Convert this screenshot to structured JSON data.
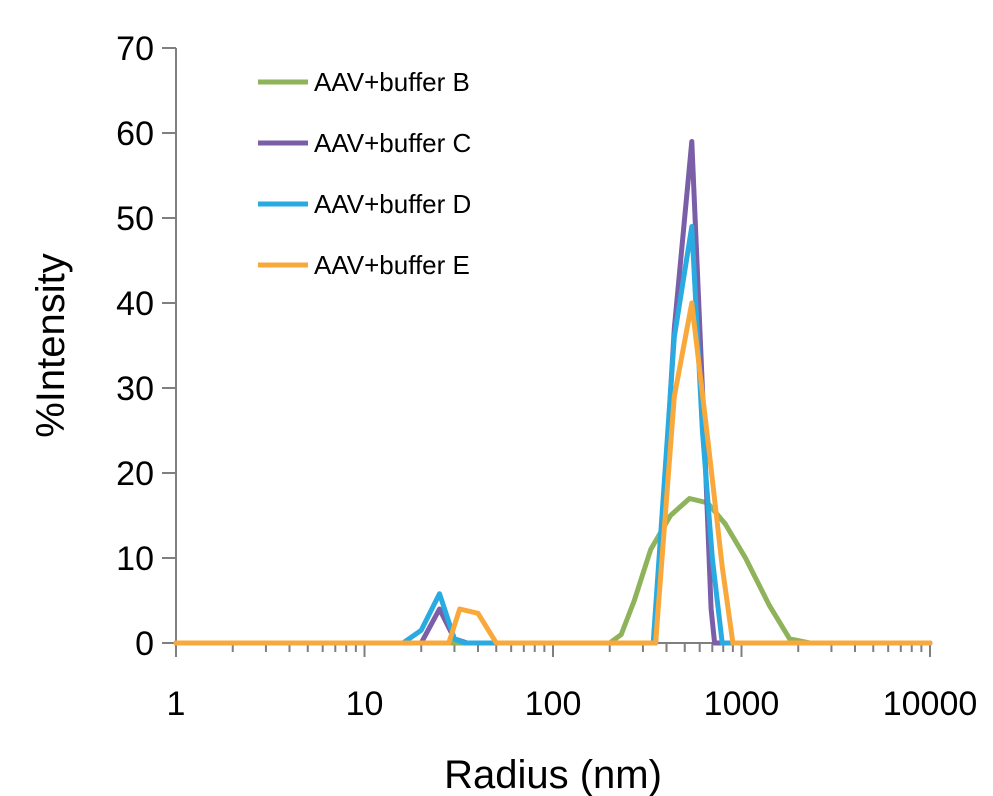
{
  "chart_data": {
    "type": "line",
    "title": "",
    "xlabel": "Radius (nm)",
    "ylabel": "%Intensity",
    "x_scale": "log",
    "xlim": [
      1,
      10000
    ],
    "ylim": [
      0,
      70
    ],
    "y_ticks": [
      0,
      10,
      20,
      30,
      40,
      50,
      60,
      70
    ],
    "x_ticks": [
      1,
      10,
      100,
      1000,
      10000
    ],
    "x_tick_labels": [
      "1",
      "10",
      "100",
      "1000",
      "10000"
    ],
    "y_tick_labels": [
      "0",
      "10",
      "20",
      "30",
      "40",
      "50",
      "60",
      "70"
    ],
    "grid": false,
    "legend_position": "top-left",
    "series": [
      {
        "name": "AAV+buffer B",
        "color": "#8fb35a",
        "points": [
          [
            1,
            0
          ],
          [
            200,
            0
          ],
          [
            230,
            1
          ],
          [
            270,
            5
          ],
          [
            330,
            11
          ],
          [
            420,
            15
          ],
          [
            530,
            17
          ],
          [
            660,
            16.5
          ],
          [
            820,
            14
          ],
          [
            1050,
            10
          ],
          [
            1400,
            4.5
          ],
          [
            1800,
            0.5
          ],
          [
            2300,
            0
          ],
          [
            10000,
            0
          ]
        ]
      },
      {
        "name": "AAV+buffer C",
        "color": "#7a5fa8",
        "points": [
          [
            1,
            0
          ],
          [
            20,
            0
          ],
          [
            25,
            4
          ],
          [
            30,
            0.5
          ],
          [
            35,
            0
          ],
          [
            350,
            0
          ],
          [
            440,
            37
          ],
          [
            545,
            59
          ],
          [
            620,
            30
          ],
          [
            690,
            4
          ],
          [
            720,
            0
          ],
          [
            10000,
            0
          ]
        ]
      },
      {
        "name": "AAV+buffer D",
        "color": "#29aae1",
        "points": [
          [
            1,
            0
          ],
          [
            16,
            0
          ],
          [
            20,
            1.5
          ],
          [
            25,
            5.8
          ],
          [
            30,
            0.5
          ],
          [
            34,
            0
          ],
          [
            340,
            0
          ],
          [
            440,
            36
          ],
          [
            545,
            49
          ],
          [
            620,
            25
          ],
          [
            700,
            10
          ],
          [
            790,
            0
          ],
          [
            10000,
            0
          ]
        ]
      },
      {
        "name": "AAV+buffer E",
        "color": "#f9a93b",
        "points": [
          [
            1,
            0
          ],
          [
            28,
            0
          ],
          [
            32,
            4
          ],
          [
            40,
            3.5
          ],
          [
            50,
            0
          ],
          [
            350,
            0
          ],
          [
            440,
            29
          ],
          [
            545,
            40
          ],
          [
            670,
            23
          ],
          [
            790,
            9
          ],
          [
            900,
            0
          ],
          [
            10000,
            0
          ]
        ]
      }
    ]
  }
}
